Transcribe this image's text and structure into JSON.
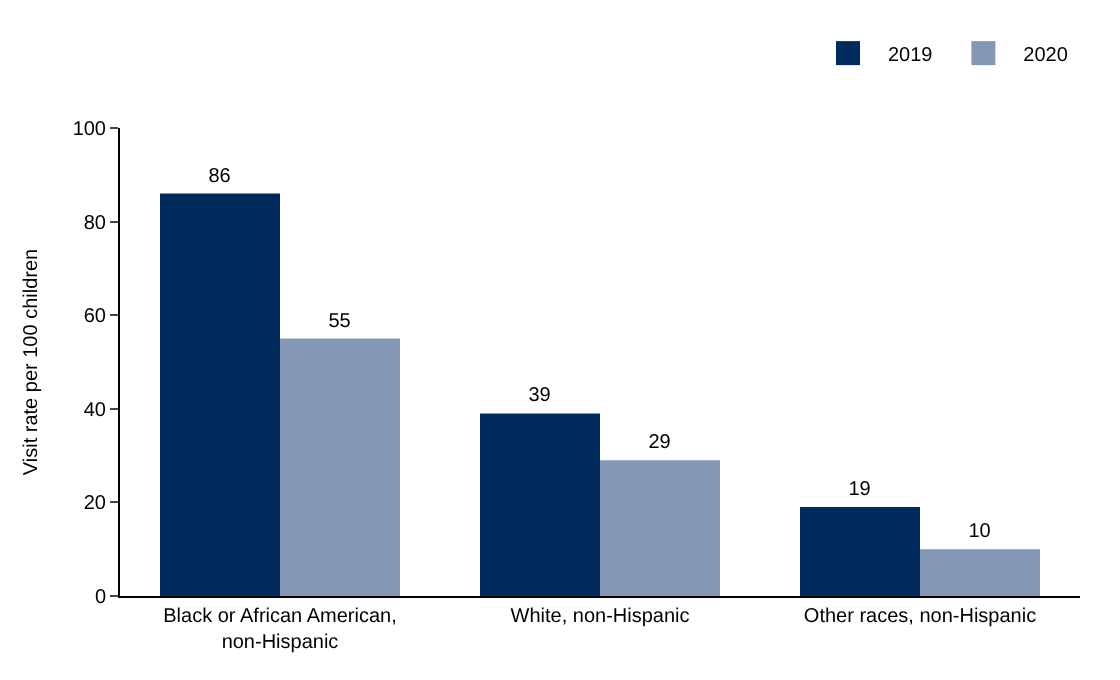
{
  "chart_data": {
    "type": "bar",
    "ylabel": "Visit rate per 100 children",
    "categories": [
      "Black or African American,\nnon-Hispanic",
      "White, non-Hispanic",
      "Other races, non-Hispanic"
    ],
    "series": [
      {
        "name": "2019",
        "color": "#002b5c",
        "values": [
          86,
          39,
          19
        ]
      },
      {
        "name": "2020",
        "color": "#8497b5",
        "values": [
          55,
          29,
          10
        ]
      }
    ],
    "ylim": [
      0,
      100
    ],
    "yticks": [
      0,
      20,
      40,
      60,
      80,
      100
    ],
    "legend": "top right",
    "data_labels": true
  }
}
